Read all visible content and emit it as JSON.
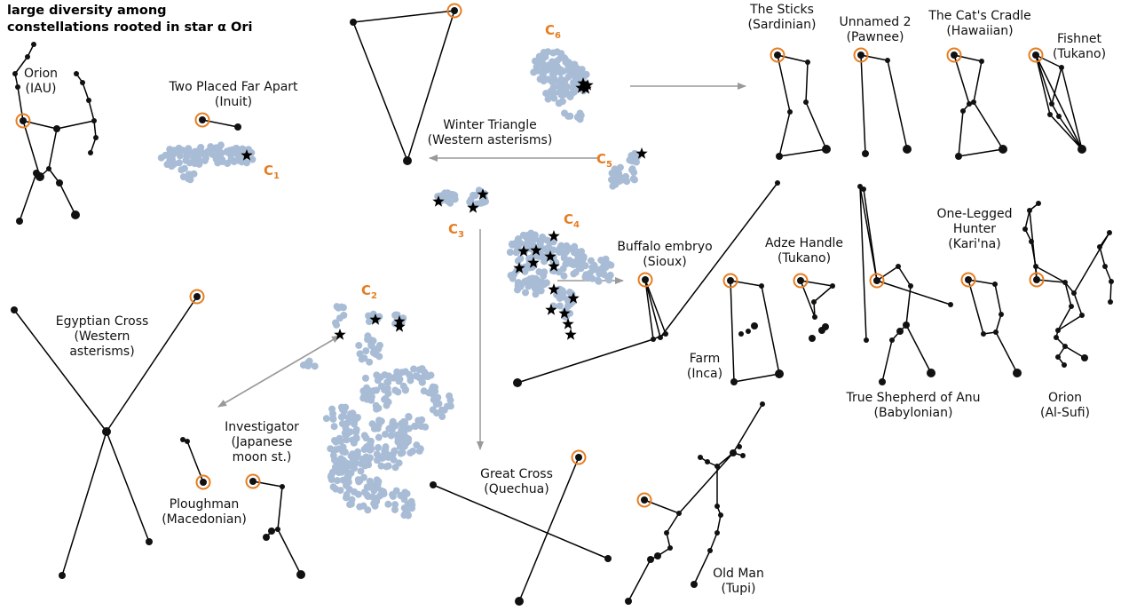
{
  "title": {
    "line1": "large diversity among",
    "line2": "constellations rooted in star α Ori"
  },
  "clusters": [
    {
      "letter": "C",
      "index": "1"
    },
    {
      "letter": "C",
      "index": "2"
    },
    {
      "letter": "C",
      "index": "3"
    },
    {
      "letter": "C",
      "index": "4"
    },
    {
      "letter": "C",
      "index": "5"
    },
    {
      "letter": "C",
      "index": "6"
    }
  ],
  "constellations": [
    {
      "name": "Orion",
      "culture": "(IAU)"
    },
    {
      "name": "Two Placed Far Apart",
      "culture": "(Inuit)"
    },
    {
      "name": "Winter Triangle",
      "culture": "(Western asterisms)"
    },
    {
      "name": "The Sticks",
      "culture": "(Sardinian)"
    },
    {
      "name": "Unnamed 2",
      "culture": "(Pawnee)"
    },
    {
      "name": "The Cat's Cradle",
      "culture": "(Hawaiian)"
    },
    {
      "name": "Fishnet",
      "culture": "(Tukano)"
    },
    {
      "name": "Buffalo embryo",
      "culture": "(Sioux)"
    },
    {
      "name": "Adze Handle",
      "culture": "(Tukano)"
    },
    {
      "name": "One-Legged",
      "culture": "Hunter",
      "extra": "(Kari'na)"
    },
    {
      "name": "Farm",
      "culture": "(Inca)"
    },
    {
      "name": "True Shepherd of Anu",
      "culture": "(Babylonian)"
    },
    {
      "name": "Orion",
      "culture": "(Al-Sufi)"
    },
    {
      "name": "Egyptian Cross",
      "culture": "(Western",
      "extra": "asterisms)"
    },
    {
      "name": "Investigator",
      "culture": "(Japanese",
      "extra": "moon st.)"
    },
    {
      "name": "Ploughman",
      "culture": "(Macedonian)"
    },
    {
      "name": "Great Cross",
      "culture": "(Quechua)"
    },
    {
      "name": "Old Man",
      "culture": "(Tupi)"
    }
  ],
  "colors": {
    "highlight": "#e67e22",
    "cluster_points": "#a9bcd6",
    "line": "#000000",
    "arrow": "#999999"
  }
}
